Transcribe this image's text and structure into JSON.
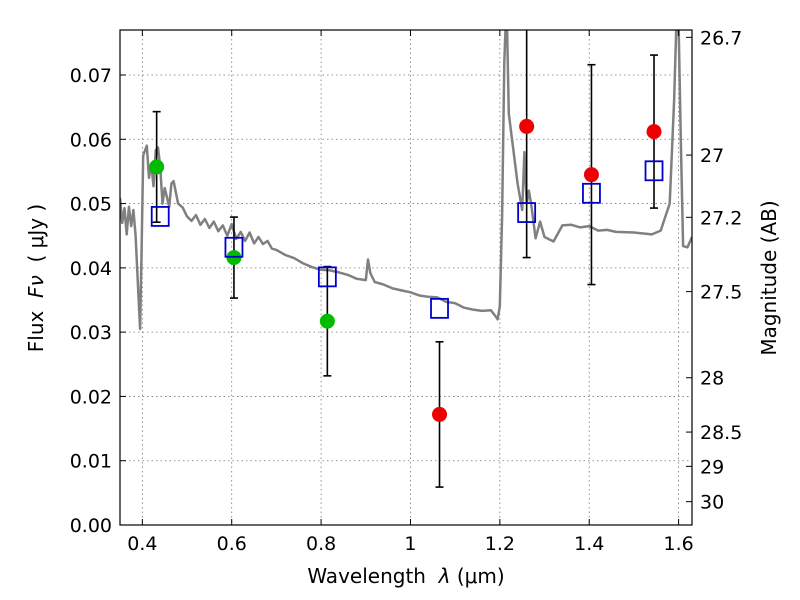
{
  "chart_data": {
    "type": "scatter",
    "xlabel_prefix": "Wavelength  ",
    "xlabel_symbol": "λ",
    "xlabel_unit": "(μm)",
    "ylabel_prefix": "Flux  ",
    "ylabel_symbol": "Fν",
    "ylabel_unit": "  ( μJy )",
    "y2label": "Magnitude (AB)",
    "xlim": [
      0.35,
      1.63
    ],
    "ylim": [
      0.0,
      0.077
    ],
    "xticks": [
      0.4,
      0.6,
      0.8,
      1.0,
      1.2,
      1.4,
      1.6
    ],
    "xtick_labels": [
      "0.4",
      "0.6",
      "0.8",
      "1",
      "1.2",
      "1.4",
      "1.6"
    ],
    "yticks": [
      0.0,
      0.01,
      0.02,
      0.03,
      0.04,
      0.05,
      0.06,
      0.07
    ],
    "ytick_labels": [
      "0.00",
      "0.01",
      "0.02",
      "0.03",
      "0.04",
      "0.05",
      "0.06",
      "0.07"
    ],
    "y2ticks": [
      26.7,
      27,
      27.2,
      27.5,
      28,
      28.5,
      29,
      30
    ],
    "y2tick_labels": [
      "26.7",
      "27",
      "27.2",
      "27.5",
      "28",
      "28.5",
      "29",
      "30"
    ],
    "grid": true,
    "colors": {
      "detections_optical": "#00bb00",
      "detections_nir": "#ee0000",
      "model": "#0000cc",
      "spectrum": "#808080",
      "error": "#000000"
    },
    "series": [
      {
        "marker": "circle-green",
        "x": [
          0.432,
          0.605,
          0.814
        ],
        "y": [
          0.0557,
          0.0416,
          0.0317
        ],
        "yerr": [
          0.0086,
          0.0063,
          0.0085
        ]
      },
      {
        "marker": "circle-red",
        "x": [
          1.065,
          1.26,
          1.405,
          1.545
        ],
        "y": [
          0.0172,
          0.062,
          0.0545,
          0.0612
        ],
        "yerr": [
          0.0113,
          0.0204,
          0.0171,
          0.0119
        ]
      },
      {
        "marker": "open-square-blue",
        "x": [
          0.44,
          0.605,
          0.814,
          1.065,
          1.26,
          1.405,
          1.545
        ],
        "y": [
          0.048,
          0.0432,
          0.0386,
          0.0337,
          0.0486,
          0.0516,
          0.0551
        ]
      }
    ],
    "spectrum": {
      "x": [
        0.35,
        0.355,
        0.36,
        0.365,
        0.37,
        0.375,
        0.38,
        0.385,
        0.39,
        0.395,
        0.398,
        0.402,
        0.41,
        0.415,
        0.42,
        0.425,
        0.43,
        0.435,
        0.44,
        0.445,
        0.45,
        0.455,
        0.46,
        0.465,
        0.47,
        0.48,
        0.49,
        0.5,
        0.51,
        0.52,
        0.53,
        0.54,
        0.55,
        0.56,
        0.57,
        0.58,
        0.59,
        0.6,
        0.61,
        0.62,
        0.63,
        0.64,
        0.65,
        0.66,
        0.67,
        0.68,
        0.69,
        0.7,
        0.72,
        0.74,
        0.76,
        0.78,
        0.8,
        0.82,
        0.84,
        0.86,
        0.88,
        0.9,
        0.905,
        0.91,
        0.915,
        0.92,
        0.94,
        0.96,
        0.98,
        1.0,
        1.02,
        1.04,
        1.06,
        1.08,
        1.1,
        1.12,
        1.14,
        1.16,
        1.18,
        1.19,
        1.195,
        1.2,
        1.205,
        1.21,
        1.213,
        1.216,
        1.22,
        1.24,
        1.25,
        1.255,
        1.26,
        1.265,
        1.27,
        1.28,
        1.29,
        1.3,
        1.32,
        1.34,
        1.36,
        1.38,
        1.4,
        1.42,
        1.44,
        1.46,
        1.5,
        1.54,
        1.56,
        1.58,
        1.59,
        1.595,
        1.6,
        1.605,
        1.61,
        1.62,
        1.63
      ],
      "y": [
        0.0509,
        0.047,
        0.0493,
        0.0452,
        0.0495,
        0.0465,
        0.049,
        0.045,
        0.0375,
        0.0305,
        0.042,
        0.0575,
        0.059,
        0.054,
        0.0562,
        0.0527,
        0.0583,
        0.0587,
        0.0558,
        0.05,
        0.0524,
        0.051,
        0.0495,
        0.0531,
        0.0535,
        0.05,
        0.0494,
        0.048,
        0.0473,
        0.0482,
        0.0467,
        0.0476,
        0.0462,
        0.0472,
        0.0457,
        0.0466,
        0.045,
        0.0468,
        0.0445,
        0.0456,
        0.0442,
        0.0455,
        0.0438,
        0.0448,
        0.0437,
        0.0442,
        0.043,
        0.0428,
        0.042,
        0.0415,
        0.0407,
        0.0401,
        0.0397,
        0.0396,
        0.0393,
        0.0389,
        0.0383,
        0.0381,
        0.0413,
        0.0392,
        0.0385,
        0.0378,
        0.0374,
        0.0368,
        0.0365,
        0.0362,
        0.0357,
        0.0355,
        0.0354,
        0.0347,
        0.0345,
        0.0338,
        0.0335,
        0.0333,
        0.0334,
        0.0325,
        0.032,
        0.034,
        0.048,
        0.072,
        0.078,
        0.078,
        0.064,
        0.053,
        0.049,
        0.058,
        0.05,
        0.052,
        0.05,
        0.0446,
        0.0472,
        0.0448,
        0.0441,
        0.0466,
        0.0467,
        0.0463,
        0.0465,
        0.0458,
        0.0459,
        0.0456,
        0.0455,
        0.0452,
        0.0458,
        0.05,
        0.066,
        0.078,
        0.078,
        0.06,
        0.0434,
        0.0432,
        0.0448
      ]
    }
  }
}
